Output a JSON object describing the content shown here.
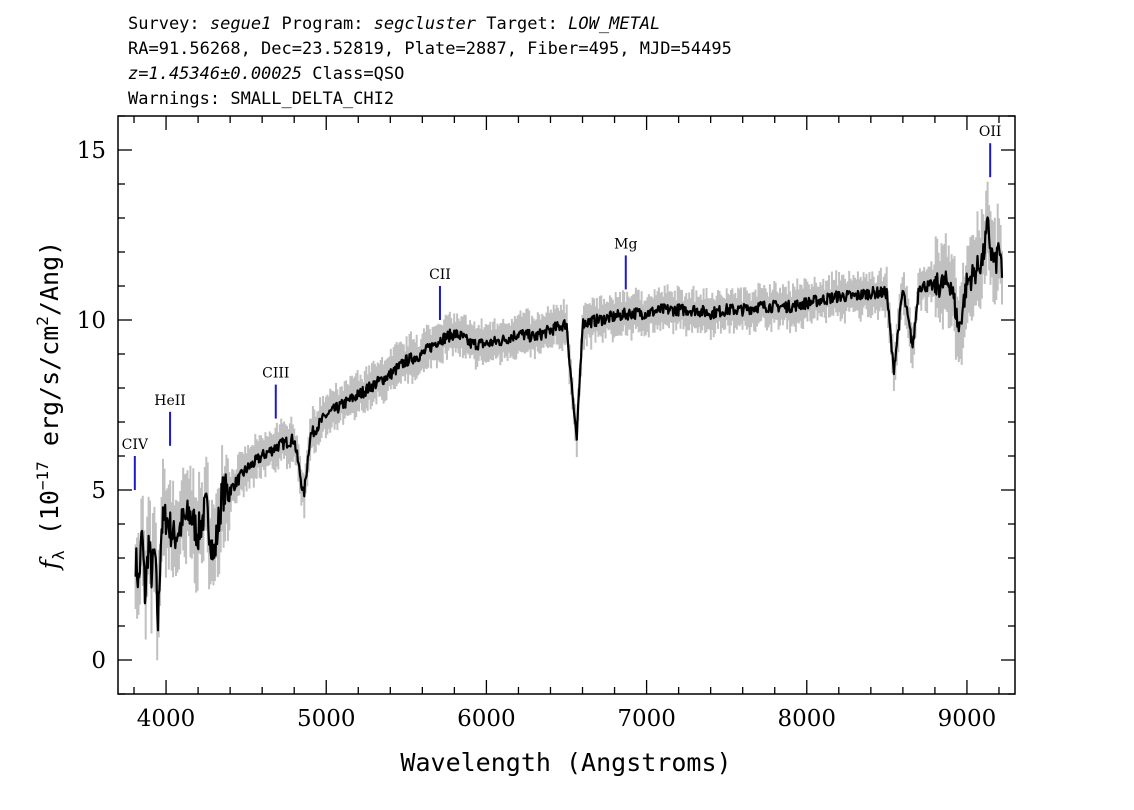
{
  "header": {
    "line1": {
      "survey_label": "Survey: ",
      "survey": "segue1",
      "program_label": " Program: ",
      "program": "segcluster",
      "target_label": " Target: ",
      "target": "LOW_METAL"
    },
    "line2": "RA=91.56268, Dec=23.52819, Plate=2887, Fiber=495, MJD=54495",
    "line3": {
      "redshift": "z=1.45346±0.00025",
      "class_text": " Class=QSO"
    },
    "line4": "Warnings: SMALL_DELTA_CHI2"
  },
  "chart_data": {
    "type": "line",
    "xlabel": "Wavelength (Angstroms)",
    "ylabel": {
      "symbol": "f",
      "subscript": "λ",
      "prefix": " (10",
      "exp1": "−17",
      "mid": " erg/s/cm",
      "exp2": "2",
      "suffix": "/Ang)"
    },
    "xlim": [
      3700,
      9300
    ],
    "ylim": [
      -1,
      16
    ],
    "x_ticks": [
      4000,
      5000,
      6000,
      7000,
      8000,
      9000
    ],
    "x_tick_labels": [
      "4000",
      "5000",
      "6000",
      "7000",
      "8000",
      "9000"
    ],
    "y_ticks": [
      0,
      5,
      10,
      15
    ],
    "y_tick_labels": [
      "0",
      "5",
      "10",
      "15"
    ],
    "series": [
      {
        "role": "flux",
        "color": "#000000",
        "x": [
          3810,
          3830,
          3850,
          3870,
          3890,
          3910,
          3930,
          3950,
          3970,
          4000,
          4050,
          4100,
          4150,
          4200,
          4250,
          4300,
          4350,
          4400,
          4500,
          4600,
          4700,
          4800,
          4860,
          4900,
          5000,
          5100,
          5200,
          5300,
          5400,
          5500,
          5600,
          5700,
          5800,
          5850,
          5900,
          6000,
          6100,
          6200,
          6300,
          6400,
          6500,
          6563,
          6600,
          6700,
          6800,
          6900,
          7000,
          7100,
          7200,
          7300,
          7400,
          7500,
          7600,
          7700,
          7800,
          7900,
          8000,
          8100,
          8200,
          8300,
          8400,
          8500,
          8542,
          8600,
          8662,
          8700,
          8800,
          8900,
          8950,
          9000,
          9050,
          9100,
          9130,
          9150,
          9180,
          9200,
          9220
        ],
        "y": [
          3.0,
          2.2,
          3.8,
          1.8,
          3.5,
          2.5,
          3.2,
          1.0,
          3.9,
          4.2,
          3.6,
          4.0,
          4.3,
          3.7,
          4.5,
          3.0,
          4.9,
          5.0,
          5.6,
          6.0,
          6.3,
          6.5,
          4.8,
          6.6,
          7.2,
          7.5,
          7.8,
          8.1,
          8.4,
          8.8,
          9.0,
          9.4,
          9.6,
          9.5,
          9.3,
          9.3,
          9.4,
          9.6,
          9.5,
          9.7,
          9.9,
          6.4,
          9.9,
          10.0,
          10.1,
          10.2,
          10.2,
          10.3,
          10.3,
          10.3,
          10.2,
          10.3,
          10.3,
          10.4,
          10.4,
          10.4,
          10.5,
          10.6,
          10.7,
          10.7,
          10.8,
          10.8,
          8.5,
          10.9,
          9.2,
          11.0,
          11.0,
          11.1,
          9.7,
          11.1,
          11.4,
          11.8,
          12.8,
          12.0,
          11.6,
          12.3,
          11.1
        ]
      }
    ],
    "error_band_color": "#c0c0c0",
    "line_markers": [
      {
        "label": "CIV",
        "x": 3805,
        "y_low": 5.0,
        "y_high": 6.0
      },
      {
        "label": "HeII",
        "x": 4025,
        "y_low": 6.3,
        "y_high": 7.3
      },
      {
        "label": "CIII",
        "x": 4685,
        "y_low": 7.1,
        "y_high": 8.1
      },
      {
        "label": "CII",
        "x": 5710,
        "y_low": 10.0,
        "y_high": 11.0
      },
      {
        "label": "Mg",
        "x": 6870,
        "y_low": 10.9,
        "y_high": 11.9
      },
      {
        "label": "OII",
        "x": 9145,
        "y_low": 14.2,
        "y_high": 15.2
      }
    ],
    "marker_color": "#1a1acc",
    "grid": false,
    "legend": "none"
  }
}
